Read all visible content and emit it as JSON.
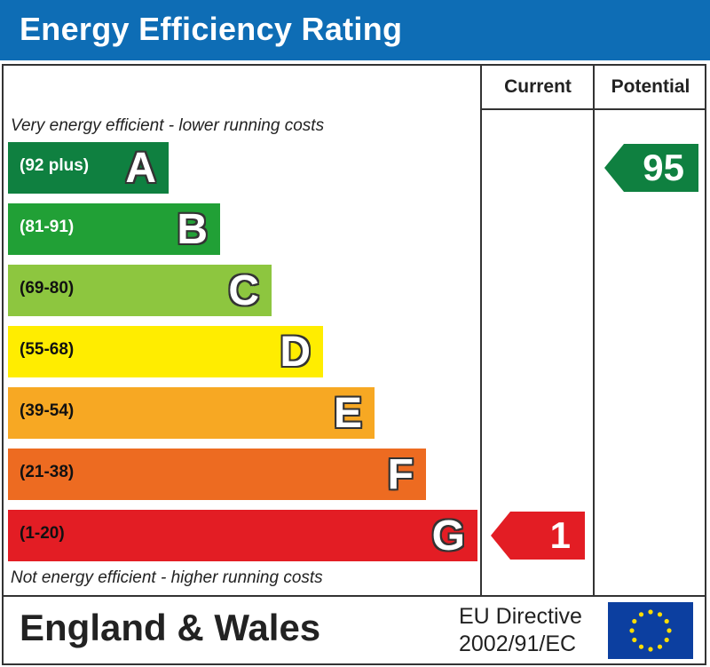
{
  "header": {
    "title": "Energy Efficiency Rating"
  },
  "columns": {
    "current": "Current",
    "potential": "Potential"
  },
  "notes": {
    "top": "Very energy efficient - lower running costs",
    "bottom": "Not energy efficient - higher running costs"
  },
  "footer": {
    "region": "England & Wales",
    "directive_line1": "EU Directive",
    "directive_line2": "2002/91/EC"
  },
  "colors": {
    "header": "#0e6db5",
    "flag": "#0c3fa0",
    "stars": "#ffdd00"
  },
  "chart_data": {
    "type": "bar",
    "title": "Energy Efficiency Rating",
    "categories": [
      "A",
      "B",
      "C",
      "D",
      "E",
      "F",
      "G"
    ],
    "bands": [
      {
        "letter": "A",
        "range": "(92 plus)",
        "color": "#0f8040",
        "text_dark": false
      },
      {
        "letter": "B",
        "range": "(81-91)",
        "color": "#21a036",
        "text_dark": false
      },
      {
        "letter": "C",
        "range": "(69-80)",
        "color": "#8dc63f",
        "text_dark": true
      },
      {
        "letter": "D",
        "range": "(55-68)",
        "color": "#ffed00",
        "text_dark": true
      },
      {
        "letter": "E",
        "range": "(39-54)",
        "color": "#f7a823",
        "text_dark": true
      },
      {
        "letter": "F",
        "range": "(21-38)",
        "color": "#ed6b21",
        "text_dark": true
      },
      {
        "letter": "G",
        "range": "(1-20)",
        "color": "#e31d24",
        "text_dark": true
      }
    ],
    "current": {
      "value": "1",
      "band": "G",
      "color": "#e31d24"
    },
    "potential": {
      "value": "95",
      "band": "A",
      "color": "#0f8040"
    }
  }
}
